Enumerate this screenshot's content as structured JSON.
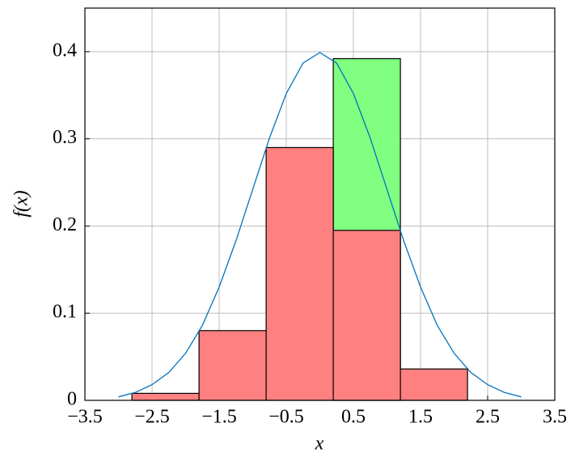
{
  "chart_data": {
    "type": "histogram",
    "xlabel": "x",
    "ylabel": "f(x)",
    "bins": [
      -2.8,
      -1.8,
      -0.8,
      0.2,
      1.2,
      2.2
    ],
    "series": [
      {
        "color": "#80ff80",
        "values": [
          null,
          null,
          null,
          0.392,
          null
        ]
      },
      {
        "color": "#ff8080",
        "values": [
          0.008,
          0.08,
          0.29,
          0.195,
          0.036
        ]
      }
    ],
    "curve": {
      "color": "#0072bd",
      "x": [
        -3,
        -2.75,
        -2.5,
        -2.25,
        -2,
        -1.75,
        -1.5,
        -1.25,
        -1,
        -0.75,
        -0.5,
        -0.25,
        0,
        0.25,
        0.5,
        0.75,
        1,
        1.25,
        1.5,
        1.75,
        2,
        2.25,
        2.5,
        2.75,
        3
      ],
      "y": [
        0.004,
        0.009,
        0.018,
        0.032,
        0.054,
        0.086,
        0.13,
        0.183,
        0.242,
        0.301,
        0.352,
        0.387,
        0.399,
        0.387,
        0.352,
        0.301,
        0.242,
        0.183,
        0.13,
        0.086,
        0.054,
        0.032,
        0.018,
        0.009,
        0.004
      ]
    },
    "xlim": [
      -3.5,
      3.5
    ],
    "xticks": [
      {
        "value": -3.5,
        "label": "−3.5"
      },
      {
        "value": -2.5,
        "label": "−2.5"
      },
      {
        "value": -1.5,
        "label": "−1.5"
      },
      {
        "value": -0.5,
        "label": "−0.5"
      },
      0.5,
      1.5,
      2.5,
      3.5
    ],
    "ylim": [
      0,
      0.45
    ],
    "yticks": [
      0,
      0.1,
      0.2,
      0.3,
      0.4
    ],
    "grid": true
  }
}
